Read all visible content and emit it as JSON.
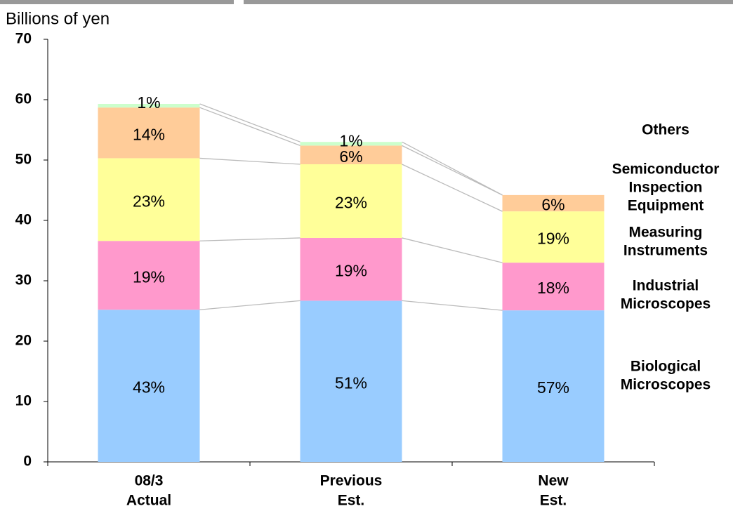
{
  "chart_data": {
    "type": "stacked_bar",
    "ylabel": "Billions of yen",
    "categories": [
      [
        "08/3",
        "Actual"
      ],
      [
        "Previous",
        "Est."
      ],
      [
        "New",
        "Est."
      ]
    ],
    "ylim": [
      0,
      70
    ],
    "yticks": [
      0,
      10,
      20,
      30,
      40,
      50,
      60,
      70
    ],
    "series": [
      {
        "name": [
          "Biological",
          "Microscopes"
        ],
        "color": "#99ccff",
        "values": [
          25.2,
          26.7,
          25.1
        ],
        "percent_labels": [
          "43%",
          "51%",
          "57%"
        ]
      },
      {
        "name": [
          "Industrial",
          "Microscopes"
        ],
        "color": "#ff99cc",
        "values": [
          11.4,
          10.4,
          7.9
        ],
        "percent_labels": [
          "19%",
          "19%",
          "18%"
        ]
      },
      {
        "name": [
          "Measuring",
          "Instruments"
        ],
        "color": "#ffff99",
        "values": [
          13.7,
          12.2,
          8.5
        ],
        "percent_labels": [
          "23%",
          "23%",
          "19%"
        ]
      },
      {
        "name": [
          "Semiconductor",
          "Inspection",
          "Equipment"
        ],
        "color": "#ffcc99",
        "values": [
          8.4,
          3.1,
          2.7
        ],
        "percent_labels": [
          "14%",
          "6%",
          "6%"
        ]
      },
      {
        "name": [
          "Others"
        ],
        "color": "#ccffcc",
        "values": [
          0.6,
          0.6,
          0
        ],
        "percent_labels": [
          "1%",
          "1%",
          null
        ]
      }
    ]
  }
}
